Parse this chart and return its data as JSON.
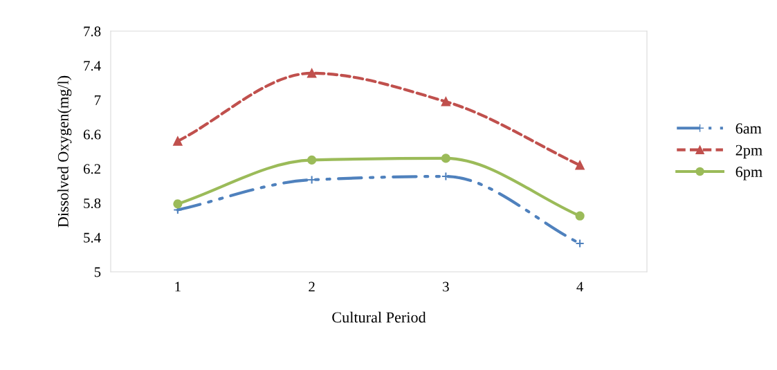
{
  "chart_data": {
    "type": "line",
    "xlabel": "Cultural Period",
    "ylabel": "Dissolved Oxygen(mg/l)",
    "categories": [
      "1",
      "2",
      "3",
      "4"
    ],
    "series": [
      {
        "name": "6am",
        "color": "#4f81bd",
        "values": [
          5.72,
          6.07,
          6.11,
          5.33
        ],
        "marker": "cross",
        "line_style": "dashdot"
      },
      {
        "name": "2pm",
        "color": "#c0504d",
        "values": [
          6.52,
          7.31,
          6.98,
          6.24
        ],
        "marker": "triangle",
        "line_style": "dashed"
      },
      {
        "name": "6pm",
        "color": "#9bbb59",
        "values": [
          5.79,
          6.3,
          6.32,
          5.65
        ],
        "marker": "circle",
        "line_style": "solid"
      }
    ],
    "ylim": [
      5,
      7.8
    ],
    "yticks": [
      5,
      5.4,
      5.8,
      6.2,
      6.6,
      7,
      7.4,
      7.8
    ],
    "grid": false,
    "legend": "right"
  }
}
